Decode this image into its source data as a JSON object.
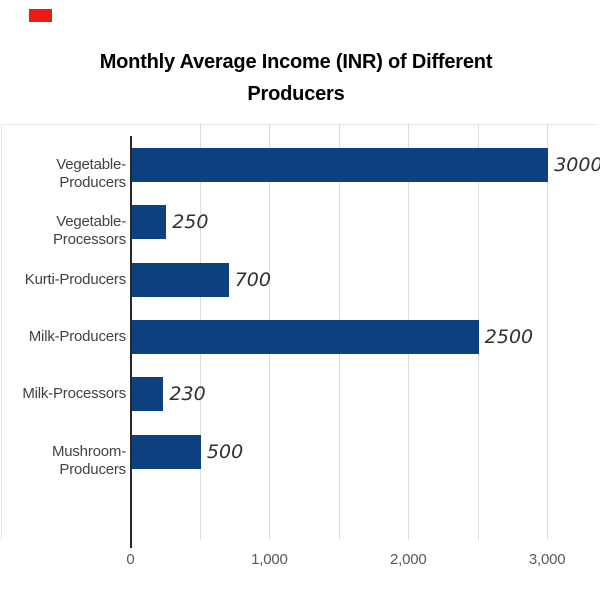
{
  "page": {
    "background": "#ffffff",
    "marker_color": "#ec1c10"
  },
  "title_lines": [
    "Monthly Average Income (INR) of Different",
    "Producers"
  ],
  "chart_data": {
    "type": "bar",
    "orientation": "horizontal",
    "title": "Monthly Average Income (INR) of Different Producers",
    "categories": [
      "Vegetable-Producers",
      "Vegetable-Processors",
      "Kurti-Producers",
      "Milk-Producers",
      "Milk-Processors",
      "Mushroom-Producers"
    ],
    "values": [
      3000,
      250,
      700,
      2500,
      230,
      500
    ],
    "value_labels": [
      "3000",
      "250",
      "700",
      "2500",
      "230",
      "500"
    ],
    "xlabel": "",
    "ylabel": "",
    "xlim": [
      0,
      3000
    ],
    "x_ticks": [
      0,
      1000,
      2000,
      3000
    ],
    "x_tick_labels": [
      "0",
      "1,000",
      "2,000",
      "3,000"
    ],
    "minor_gridlines_x": [
      500,
      1000,
      1500,
      2000,
      2500,
      3000
    ],
    "grid": true,
    "legend": false,
    "colors": {
      "bar": "#0d4180",
      "gridline": "#dcdcdc",
      "plot_border": "#e7e7e7",
      "axis_line": "#262626",
      "tick_label": "#595959",
      "category_label": "#424242",
      "value_label": "#303030",
      "title": "#000000"
    }
  }
}
